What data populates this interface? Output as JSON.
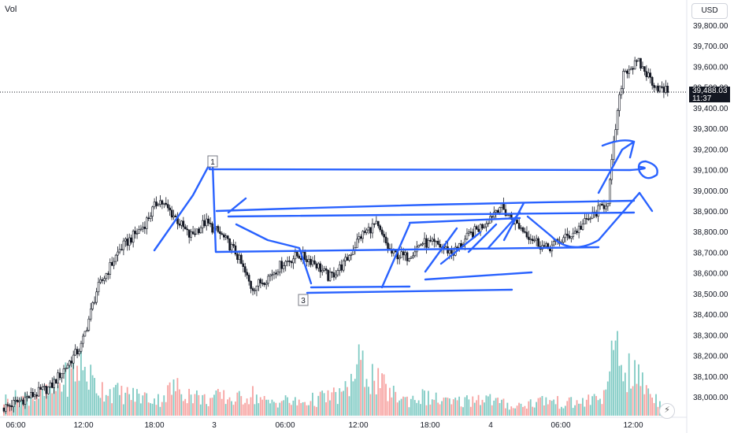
{
  "vol_label": "Vol",
  "currency": "USD",
  "last_price": {
    "price": "39,488.03",
    "countdown": "11:37",
    "value": 39488.03
  },
  "markers": [
    {
      "label": "1",
      "x_index": 4
    },
    {
      "label": "3",
      "x_index": 6
    }
  ],
  "colors": {
    "up": "#26a69a",
    "down": "#ef5350",
    "candle": "#131722",
    "drawing": "#2962ff",
    "vol_up": "#80cbc4",
    "vol_down": "#f7a3a1"
  },
  "chart_data": {
    "type": "candlestick",
    "ylim": [
      37900,
      39900
    ],
    "y_ticks": [
      38000,
      38100,
      38200,
      38300,
      38400,
      38500,
      38600,
      38700,
      38800,
      38900,
      39000,
      39100,
      39200,
      39300,
      39400,
      39500,
      39600,
      39700,
      39800
    ],
    "y_tick_labels": [
      "38,000.00",
      "38,100.00",
      "38,200.00",
      "38,300.00",
      "38,400.00",
      "38,500.00",
      "38,600.00",
      "38,700.00",
      "38,800.00",
      "38,900.00",
      "39,000.00",
      "39,100.00",
      "39,200.00",
      "39,300.00",
      "39,400.00",
      "39,500.00",
      "39,600.00",
      "39,700.00",
      "39,800.00"
    ],
    "x_tick_labels": [
      "06:00",
      "12:00",
      "18:00",
      "3",
      "06:00",
      "12:00",
      "18:00",
      "4",
      "06:00",
      "12:00"
    ],
    "close_path": [
      [
        0,
        37950
      ],
      [
        6,
        38050
      ],
      [
        10,
        38250
      ],
      [
        12,
        38520
      ],
      [
        15,
        38720
      ],
      [
        18,
        38830
      ],
      [
        20,
        38960
      ],
      [
        22,
        38880
      ],
      [
        24,
        38780
      ],
      [
        26,
        38850
      ],
      [
        28,
        38790
      ],
      [
        30,
        38700
      ],
      [
        32,
        38530
      ],
      [
        34,
        38580
      ],
      [
        36,
        38650
      ],
      [
        38,
        38690
      ],
      [
        40,
        38660
      ],
      [
        42,
        38580
      ],
      [
        44,
        38650
      ],
      [
        46,
        38780
      ],
      [
        48,
        38840
      ],
      [
        50,
        38700
      ],
      [
        52,
        38680
      ],
      [
        54,
        38750
      ],
      [
        56,
        38740
      ],
      [
        58,
        38700
      ],
      [
        60,
        38780
      ],
      [
        62,
        38840
      ],
      [
        64,
        38930
      ],
      [
        66,
        38850
      ],
      [
        68,
        38780
      ],
      [
        70,
        38720
      ],
      [
        72,
        38760
      ],
      [
        74,
        38810
      ],
      [
        76,
        38880
      ],
      [
        78,
        38950
      ],
      [
        79,
        39300
      ],
      [
        80,
        39580
      ],
      [
        82,
        39620
      ],
      [
        84,
        39520
      ],
      [
        85,
        39488
      ]
    ],
    "volume_profile": [
      [
        0,
        25
      ],
      [
        6,
        35
      ],
      [
        10,
        80
      ],
      [
        12,
        45
      ],
      [
        15,
        35
      ],
      [
        18,
        30
      ],
      [
        20,
        25
      ],
      [
        22,
        45
      ],
      [
        24,
        35
      ],
      [
        26,
        25
      ],
      [
        28,
        30
      ],
      [
        30,
        25
      ],
      [
        32,
        35
      ],
      [
        34,
        20
      ],
      [
        36,
        25
      ],
      [
        38,
        20
      ],
      [
        40,
        25
      ],
      [
        42,
        30
      ],
      [
        44,
        35
      ],
      [
        46,
        80
      ],
      [
        48,
        55
      ],
      [
        50,
        35
      ],
      [
        52,
        25
      ],
      [
        54,
        30
      ],
      [
        56,
        25
      ],
      [
        58,
        20
      ],
      [
        60,
        25
      ],
      [
        62,
        30
      ],
      [
        64,
        20
      ],
      [
        66,
        15
      ],
      [
        68,
        20
      ],
      [
        70,
        25
      ],
      [
        72,
        20
      ],
      [
        74,
        20
      ],
      [
        76,
        25
      ],
      [
        78,
        35
      ],
      [
        79,
        130
      ],
      [
        80,
        70
      ],
      [
        82,
        60
      ],
      [
        84,
        30
      ],
      [
        85,
        20
      ]
    ]
  }
}
